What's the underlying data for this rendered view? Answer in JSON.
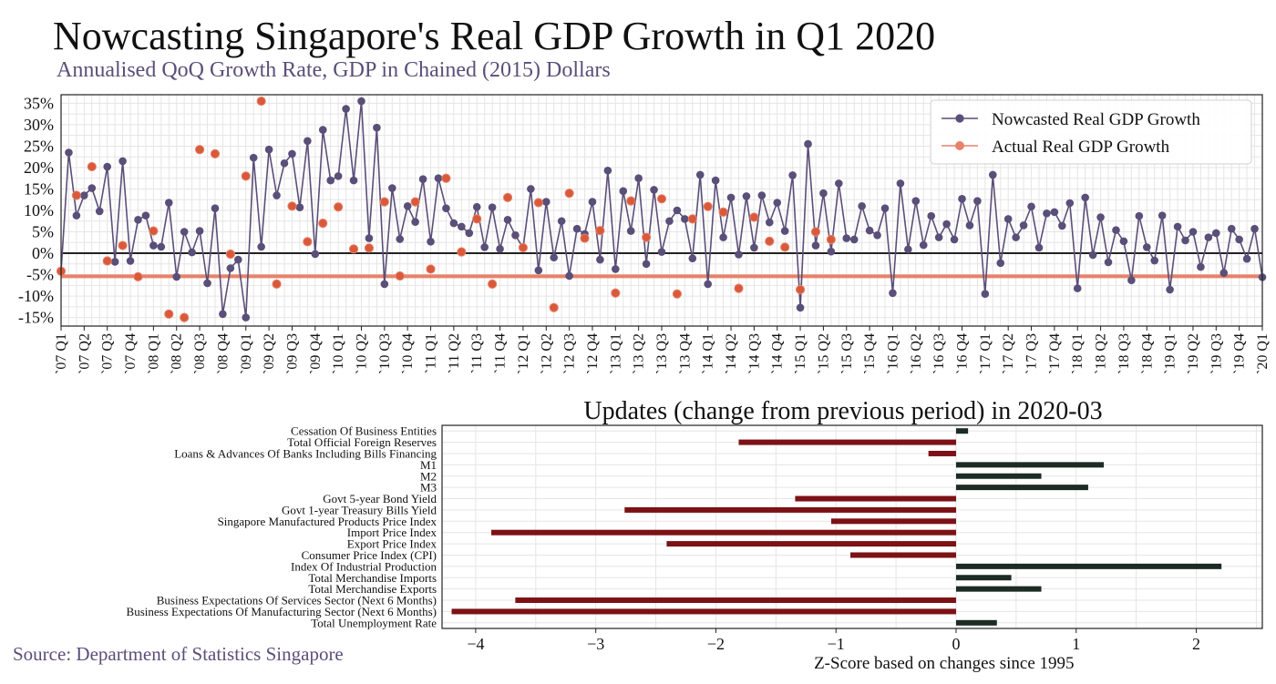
{
  "title": "Nowcasting Singapore's Real GDP Growth in Q1 2020",
  "subtitle": "Annualised QoQ Growth Rate, GDP in Chained (2015) Dollars",
  "source": "Source: Department of Statistics Singapore",
  "colors": {
    "nowcast": "#5a4f78",
    "actual": "#e8826a",
    "actual_fill": "#d9593b",
    "negative_bar": "#7c1216",
    "positive_bar": "#1c2b24",
    "grid": "#e5e5e5"
  },
  "chart_data": [
    {
      "type": "line",
      "title": "",
      "xlabel": "",
      "ylabel": "",
      "ylim": [
        -17,
        37
      ],
      "yticks": [
        -15,
        -10,
        -5,
        0,
        5,
        10,
        15,
        20,
        25,
        30,
        35
      ],
      "ytick_labels": [
        "-15%",
        "-10%",
        "-5%",
        "0%",
        "5%",
        "10%",
        "15%",
        "20%",
        "25%",
        "30%",
        "35%"
      ],
      "x_labels": [
        "`07 Q1",
        "`07 Q2",
        "`07 Q3",
        "`07 Q4",
        "`08 Q1",
        "`08 Q2",
        "`08 Q3",
        "`08 Q4",
        "`09 Q1",
        "`09 Q2",
        "`09 Q3",
        "`09 Q4",
        "`10 Q1",
        "`10 Q2",
        "`10 Q3",
        "`10 Q4",
        "`11 Q1",
        "`11 Q2",
        "`11 Q3",
        "`11 Q4",
        "`12 Q1",
        "`12 Q2",
        "`12 Q3",
        "`12 Q4",
        "`13 Q1",
        "`13 Q2",
        "`13 Q3",
        "`13 Q4",
        "`14 Q1",
        "`14 Q2",
        "`14 Q3",
        "`14 Q4",
        "`15 Q1",
        "`15 Q2",
        "`15 Q3",
        "`15 Q4",
        "`16 Q1",
        "`16 Q2",
        "`16 Q3",
        "`16 Q4",
        "`17 Q1",
        "`17 Q2",
        "`17 Q3",
        "`17 Q4",
        "`18 Q1",
        "`18 Q2",
        "`18 Q3",
        "`18 Q4",
        "`19 Q1",
        "`19 Q2",
        "`19 Q3",
        "`19 Q4",
        "`20 Q1"
      ],
      "legend": [
        "Nowcasted Real GDP Growth",
        "Actual Real GDP Growth"
      ],
      "legend_position": "top-right",
      "grid": true,
      "zero_line": 0,
      "reference_line": -5.4,
      "series": [
        {
          "name": "Nowcasted Real GDP Growth",
          "values": [
            -4.2,
            23.5,
            8.8,
            13.5,
            15.2,
            9.8,
            20.2,
            -2.0,
            21.5,
            -1.8,
            7.8,
            8.8,
            1.8,
            1.5,
            11.8,
            -5.5,
            5.0,
            0.2,
            5.2,
            -7.0,
            10.5,
            -14.2,
            -3.5,
            -1.5,
            -15.0,
            22.3,
            1.5,
            24.2,
            13.5,
            21.0,
            23.2,
            10.7,
            26.2,
            -0.2,
            28.8,
            17.0,
            18.0,
            33.7,
            17.0,
            35.5,
            3.5,
            29.3,
            -7.2,
            15.2,
            3.3,
            11.0,
            7.3,
            17.3,
            2.7,
            17.5,
            10.5,
            7.0,
            6.2,
            4.7,
            10.8,
            1.4,
            10.7,
            1.0,
            7.8,
            4.2,
            1.2,
            15.0,
            -4.0,
            12.0,
            -1.0,
            7.5,
            -5.3,
            5.7,
            4.5,
            12.0,
            -1.5,
            19.3,
            -3.7,
            14.5,
            5.2,
            17.5,
            -2.5,
            14.8,
            0.3,
            7.5,
            10.0,
            8.0,
            -1.2,
            18.3,
            -7.2,
            17.0,
            3.7,
            13.0,
            -0.3,
            13.3,
            1.3,
            13.5,
            7.2,
            11.8,
            5.2,
            18.2,
            -12.7,
            25.5,
            1.8,
            14.0,
            0.4,
            16.3,
            3.5,
            3.2,
            11.0,
            5.3,
            4.2,
            10.5,
            -9.3,
            16.3,
            0.9,
            12.2,
            1.9,
            8.7,
            3.7,
            6.8,
            3.2,
            12.7,
            6.5,
            12.2,
            -9.5,
            18.3,
            -2.3,
            8.0,
            3.7,
            6.5,
            10.9,
            1.3,
            9.3,
            9.6,
            6.4,
            11.7,
            -8.2,
            13.0,
            -0.4,
            8.4,
            -2.1,
            5.4,
            2.8,
            -6.3,
            8.7,
            1.4,
            -1.7,
            8.8,
            -8.5,
            6.2,
            3.0,
            5.0,
            -3.2,
            3.7,
            4.7,
            -4.6,
            5.7,
            3.2,
            -1.3,
            5.7,
            -5.6
          ]
        },
        {
          "name": "Actual Real GDP Growth",
          "points": [
            [
              0,
              -4.2
            ],
            [
              2,
              13.5
            ],
            [
              4,
              20.2
            ],
            [
              6,
              -1.8
            ],
            [
              8,
              1.8
            ],
            [
              10,
              -5.5
            ],
            [
              12,
              5.2
            ],
            [
              14,
              -14.2
            ],
            [
              16,
              -15.0
            ],
            [
              18,
              24.2
            ],
            [
              20,
              23.2
            ],
            [
              22,
              -0.2
            ],
            [
              24,
              18.0
            ],
            [
              26,
              35.5
            ],
            [
              28,
              -7.2
            ],
            [
              30,
              11.0
            ],
            [
              32,
              2.7
            ],
            [
              34,
              7.0
            ],
            [
              36,
              10.8
            ],
            [
              38,
              1.0
            ],
            [
              40,
              1.2
            ],
            [
              42,
              12.0
            ],
            [
              44,
              -5.3
            ],
            [
              46,
              12.0
            ],
            [
              48,
              -3.7
            ],
            [
              50,
              17.5
            ],
            [
              52,
              0.3
            ],
            [
              54,
              8.0
            ],
            [
              56,
              -7.2
            ],
            [
              58,
              13.0
            ],
            [
              60,
              1.3
            ],
            [
              62,
              11.8
            ],
            [
              64,
              -12.7
            ],
            [
              66,
              14.0
            ],
            [
              68,
              3.5
            ],
            [
              70,
              5.3
            ],
            [
              72,
              -9.3
            ],
            [
              74,
              12.2
            ],
            [
              76,
              3.7
            ],
            [
              78,
              12.7
            ],
            [
              80,
              -9.5
            ],
            [
              82,
              8.0
            ],
            [
              84,
              10.9
            ],
            [
              86,
              9.6
            ],
            [
              88,
              -8.2
            ],
            [
              90,
              8.4
            ],
            [
              92,
              2.8
            ],
            [
              94,
              1.4
            ],
            [
              96,
              -8.5
            ],
            [
              98,
              5.0
            ],
            [
              100,
              3.2
            ]
          ]
        }
      ]
    },
    {
      "type": "bar",
      "orientation": "horizontal",
      "title": "Updates (change from previous period) in 2020-03",
      "xlabel": "Z-Score based on changes since 1995",
      "xlim": [
        -4.28,
        2.55
      ],
      "xticks": [
        -4,
        -3,
        -2,
        -1,
        0,
        1,
        2
      ],
      "xtick_labels": [
        "−4",
        "−3",
        "−2",
        "−1",
        "0",
        "1",
        "2"
      ],
      "grid": true,
      "categories": [
        "Cessation Of Business Entities",
        "Total Official Foreign Reserves",
        "Loans & Advances Of Banks Including Bills Financing",
        "M1",
        "M2",
        "M3",
        "Govt 5-year Bond Yield",
        "Govt 1-year Treasury Bills Yield",
        "Singapore Manufactured Products Price Index",
        "Import Price Index",
        "Export Price Index",
        "Consumer Price Index (CPI)",
        "Index Of Industrial Production",
        "Total Merchandise Imports",
        "Total Merchandise Exports",
        "Business Expectations Of Services Sector (Next 6 Months)",
        "Business Expectations Of Manufacturing Sector (Next 6 Months)",
        "Total Unemployment Rate"
      ],
      "values": [
        0.1,
        -1.81,
        -0.23,
        1.23,
        0.71,
        1.1,
        -1.34,
        -2.76,
        -1.04,
        -3.87,
        -2.41,
        -0.88,
        2.21,
        0.46,
        0.71,
        -3.67,
        -4.2,
        0.34
      ]
    }
  ]
}
